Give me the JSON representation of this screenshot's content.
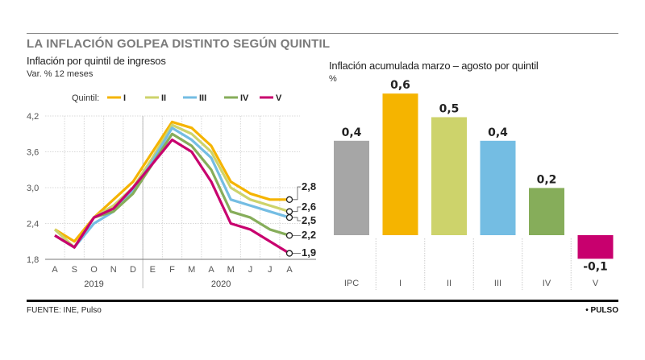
{
  "title": "LA INFLACIÓN GOLPEA DISTINTO SEGÚN QUINTIL",
  "footer": {
    "source": "FUENTE: INE, Pulso",
    "brand": "• PULSO"
  },
  "colors": {
    "I": "#f5b400",
    "II": "#cdd36b",
    "III": "#74bde3",
    "IV": "#86ad5a",
    "V": "#c8006e",
    "IPC": "#a6a6a6"
  },
  "chart_data": [
    {
      "type": "line",
      "title": "Inflación por quintil de ingresos",
      "subtitle": "Var. % 12 meses",
      "xlabel": "",
      "ylabel": "",
      "ylim": [
        1.8,
        4.2
      ],
      "yticks": [
        "4,2",
        "3,6",
        "3,0",
        "2,4",
        "1,8"
      ],
      "ytick_values": [
        4.2,
        3.6,
        3.0,
        2.4,
        1.8
      ],
      "grid": true,
      "legend_title": "Quintil:",
      "legend_position": "top",
      "x": [
        "A",
        "S",
        "O",
        "N",
        "D",
        "E",
        "F",
        "M",
        "A",
        "M",
        "J",
        "J",
        "A"
      ],
      "year_groups": [
        {
          "label": "2019",
          "from": 0,
          "to": 4
        },
        {
          "label": "2020",
          "from": 5,
          "to": 12
        }
      ],
      "series": [
        {
          "name": "I",
          "color": "#f5b400",
          "values": [
            2.3,
            2.1,
            2.5,
            2.8,
            3.1,
            3.6,
            4.1,
            4.0,
            3.7,
            3.1,
            2.9,
            2.8,
            2.8
          ],
          "end_label": "2,8"
        },
        {
          "name": "II",
          "color": "#cdd36b",
          "values": [
            2.3,
            2.0,
            2.5,
            2.7,
            3.0,
            3.5,
            4.05,
            3.9,
            3.6,
            3.0,
            2.8,
            2.7,
            2.6
          ],
          "end_label": "2,6"
        },
        {
          "name": "III",
          "color": "#74bde3",
          "values": [
            2.2,
            2.0,
            2.4,
            2.6,
            2.95,
            3.45,
            4.0,
            3.8,
            3.5,
            2.8,
            2.7,
            2.6,
            2.5
          ],
          "end_label": "2,5"
        },
        {
          "name": "IV",
          "color": "#86ad5a",
          "values": [
            2.2,
            2.0,
            2.5,
            2.6,
            2.9,
            3.4,
            3.9,
            3.7,
            3.3,
            2.6,
            2.5,
            2.3,
            2.2
          ],
          "end_label": "2,2"
        },
        {
          "name": "V",
          "color": "#c8006e",
          "values": [
            2.2,
            2.0,
            2.5,
            2.65,
            3.0,
            3.4,
            3.8,
            3.6,
            3.1,
            2.4,
            2.3,
            2.1,
            1.9
          ],
          "end_label": "1,9"
        }
      ]
    },
    {
      "type": "bar",
      "title": "Inflación acumulada marzo – agosto por quintil",
      "subtitle": "%",
      "categories": [
        "IPC",
        "I",
        "II",
        "III",
        "IV",
        "V"
      ],
      "values": [
        0.4,
        0.6,
        0.5,
        0.4,
        0.2,
        -0.1
      ],
      "value_labels": [
        "0,4",
        "0,6",
        "0,5",
        "0,4",
        "0,2",
        "-0,1"
      ],
      "colors": [
        "#a6a6a6",
        "#f5b400",
        "#cdd36b",
        "#74bde3",
        "#86ad5a",
        "#c8006e"
      ],
      "xlabel": "",
      "ylabel": "%",
      "ylim": [
        -0.1,
        0.6
      ]
    }
  ]
}
